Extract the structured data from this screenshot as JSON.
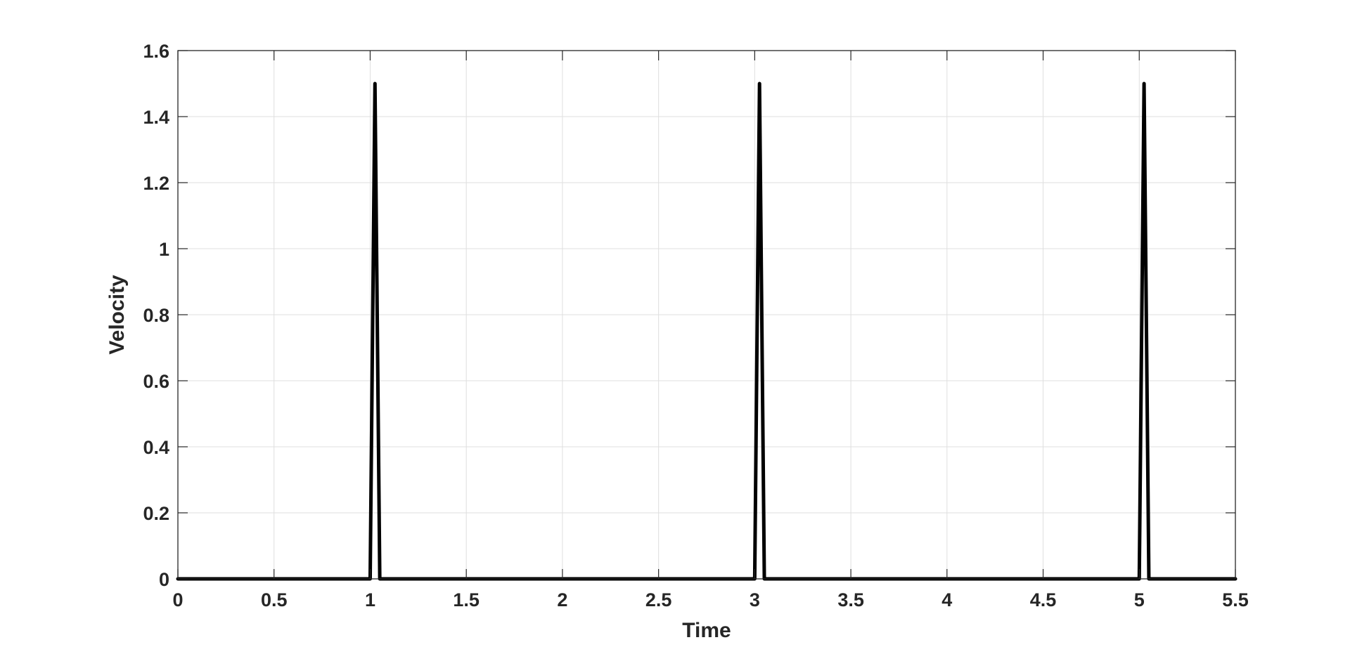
{
  "chart_data": {
    "type": "line",
    "title": "",
    "xlabel": "Time",
    "ylabel": "Velocity",
    "xlim": [
      0,
      5.5
    ],
    "ylim": [
      0,
      1.6
    ],
    "grid": true,
    "x_ticks": [
      {
        "value": 0,
        "label": "0"
      },
      {
        "value": 0.5,
        "label": "0.5"
      },
      {
        "value": 1,
        "label": "1"
      },
      {
        "value": 1.5,
        "label": "1.5"
      },
      {
        "value": 2,
        "label": "2"
      },
      {
        "value": 2.5,
        "label": "2.5"
      },
      {
        "value": 3,
        "label": "3"
      },
      {
        "value": 3.5,
        "label": "3.5"
      },
      {
        "value": 4,
        "label": "4"
      },
      {
        "value": 4.5,
        "label": "4.5"
      },
      {
        "value": 5,
        "label": "5"
      },
      {
        "value": 5.5,
        "label": "5.5"
      }
    ],
    "y_ticks": [
      {
        "value": 0,
        "label": "0"
      },
      {
        "value": 0.2,
        "label": "0.2"
      },
      {
        "value": 0.4,
        "label": "0.4"
      },
      {
        "value": 0.6,
        "label": "0.6"
      },
      {
        "value": 0.8,
        "label": "0.8"
      },
      {
        "value": 1,
        "label": "1"
      },
      {
        "value": 1.2,
        "label": "1.2"
      },
      {
        "value": 1.4,
        "label": "1.4"
      },
      {
        "value": 1.6,
        "label": "1.6"
      }
    ],
    "series": [
      {
        "color": "#000000",
        "points": [
          {
            "x": 0,
            "y": 0
          },
          {
            "x": 1.0,
            "y": 0
          },
          {
            "x": 1.025,
            "y": 1.5
          },
          {
            "x": 1.05,
            "y": 0
          },
          {
            "x": 3.0,
            "y": 0
          },
          {
            "x": 3.025,
            "y": 1.5
          },
          {
            "x": 3.05,
            "y": 0
          },
          {
            "x": 5.0,
            "y": 0
          },
          {
            "x": 5.025,
            "y": 1.5
          },
          {
            "x": 5.05,
            "y": 0
          },
          {
            "x": 5.5,
            "y": 0
          }
        ]
      }
    ]
  }
}
